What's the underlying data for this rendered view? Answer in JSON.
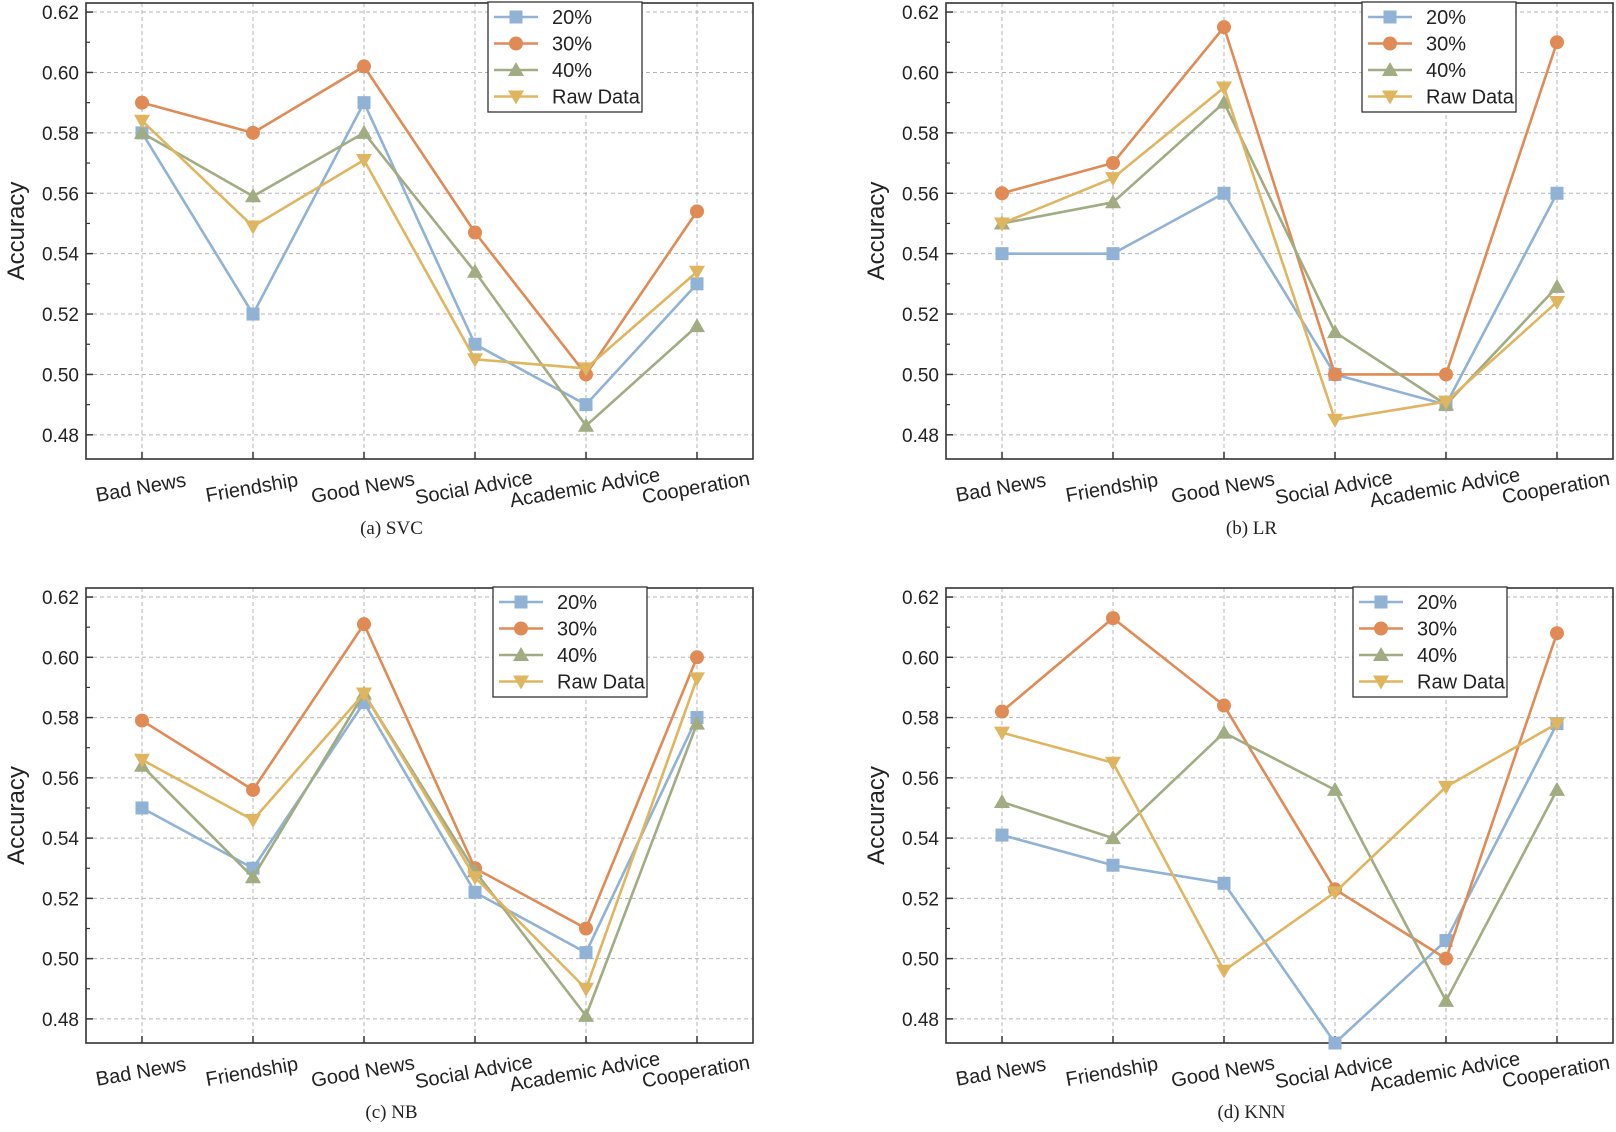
{
  "chart_data": [
    {
      "type": "line",
      "caption": "(a)  SVC",
      "ylabel": "Accuracy",
      "xlabel": "",
      "categories": [
        "Bad News",
        "Friendship",
        "Good News",
        "Social Advice",
        "Academic Advice",
        "Cooperation"
      ],
      "ylim": [
        0.472,
        0.623
      ],
      "yticks": [
        "0.48",
        "0.50",
        "0.52",
        "0.54",
        "0.56",
        "0.58",
        "0.60",
        "0.62"
      ],
      "grid": true,
      "legend_position": "top-right",
      "series": [
        {
          "name": "20%",
          "marker": "square",
          "color": "#90b2d4",
          "values": [
            0.58,
            0.52,
            0.59,
            0.51,
            0.49,
            0.53
          ]
        },
        {
          "name": "30%",
          "marker": "circle",
          "color": "#e08a55",
          "values": [
            0.59,
            0.58,
            0.602,
            0.547,
            0.5,
            0.554
          ]
        },
        {
          "name": "40%",
          "marker": "triangle-up",
          "color": "#a1ac82",
          "values": [
            0.58,
            0.559,
            0.58,
            0.534,
            0.483,
            0.516
          ]
        },
        {
          "name": "Raw Data",
          "marker": "triangle-down",
          "color": "#e0b560",
          "values": [
            0.584,
            0.549,
            0.571,
            0.505,
            0.502,
            0.534
          ]
        }
      ]
    },
    {
      "type": "line",
      "caption": "(b)  LR",
      "ylabel": "Accuracy",
      "xlabel": "",
      "categories": [
        "Bad News",
        "Friendship",
        "Good News",
        "Social Advice",
        "Academic Advice",
        "Cooperation"
      ],
      "ylim": [
        0.472,
        0.623
      ],
      "yticks": [
        "0.48",
        "0.50",
        "0.52",
        "0.54",
        "0.56",
        "0.58",
        "0.60",
        "0.62"
      ],
      "grid": true,
      "legend_position": "top-right",
      "series": [
        {
          "name": "20%",
          "marker": "square",
          "color": "#90b2d4",
          "values": [
            0.54,
            0.54,
            0.56,
            0.5,
            0.49,
            0.56
          ]
        },
        {
          "name": "30%",
          "marker": "circle",
          "color": "#e08a55",
          "values": [
            0.56,
            0.57,
            0.615,
            0.5,
            0.5,
            0.61
          ]
        },
        {
          "name": "40%",
          "marker": "triangle-up",
          "color": "#a1ac82",
          "values": [
            0.55,
            0.557,
            0.59,
            0.514,
            0.49,
            0.529
          ]
        },
        {
          "name": "Raw Data",
          "marker": "triangle-down",
          "color": "#e0b560",
          "values": [
            0.55,
            0.565,
            0.595,
            0.485,
            0.491,
            0.524
          ]
        }
      ]
    },
    {
      "type": "line",
      "caption": "(c)  NB",
      "ylabel": "Accuracy",
      "xlabel": "",
      "categories": [
        "Bad News",
        "Friendship",
        "Good News",
        "Social Advice",
        "Academic Advice",
        "Cooperation"
      ],
      "ylim": [
        0.472,
        0.623
      ],
      "yticks": [
        "0.48",
        "0.50",
        "0.52",
        "0.54",
        "0.56",
        "0.58",
        "0.60",
        "0.62"
      ],
      "grid": true,
      "legend_position": "top-right",
      "series": [
        {
          "name": "20%",
          "marker": "square",
          "color": "#90b2d4",
          "values": [
            0.55,
            0.53,
            0.585,
            0.522,
            0.502,
            0.58
          ]
        },
        {
          "name": "30%",
          "marker": "circle",
          "color": "#e08a55",
          "values": [
            0.579,
            0.556,
            0.611,
            0.53,
            0.51,
            0.6
          ]
        },
        {
          "name": "40%",
          "marker": "triangle-up",
          "color": "#a1ac82",
          "values": [
            0.564,
            0.527,
            0.588,
            0.529,
            0.481,
            0.578
          ]
        },
        {
          "name": "Raw Data",
          "marker": "triangle-down",
          "color": "#e0b560",
          "values": [
            0.566,
            0.546,
            0.588,
            0.527,
            0.49,
            0.593
          ]
        }
      ]
    },
    {
      "type": "line",
      "caption": "(d)  KNN",
      "ylabel": "Accuracy",
      "xlabel": "",
      "categories": [
        "Bad News",
        "Friendship",
        "Good News",
        "Social Advice",
        "Academic Advice",
        "Cooperation"
      ],
      "ylim": [
        0.472,
        0.623
      ],
      "yticks": [
        "0.48",
        "0.50",
        "0.52",
        "0.54",
        "0.56",
        "0.58",
        "0.60",
        "0.62"
      ],
      "grid": true,
      "legend_position": "top-right",
      "series": [
        {
          "name": "20%",
          "marker": "square",
          "color": "#90b2d4",
          "values": [
            0.541,
            0.531,
            0.525,
            0.472,
            0.506,
            0.578
          ]
        },
        {
          "name": "30%",
          "marker": "circle",
          "color": "#e08a55",
          "values": [
            0.582,
            0.613,
            0.584,
            0.523,
            0.5,
            0.608
          ]
        },
        {
          "name": "40%",
          "marker": "triangle-up",
          "color": "#a1ac82",
          "values": [
            0.552,
            0.54,
            0.575,
            0.556,
            0.486,
            0.556
          ]
        },
        {
          "name": "Raw Data",
          "marker": "triangle-down",
          "color": "#e0b560",
          "values": [
            0.575,
            0.565,
            0.496,
            0.522,
            0.557,
            0.578
          ]
        }
      ]
    }
  ]
}
